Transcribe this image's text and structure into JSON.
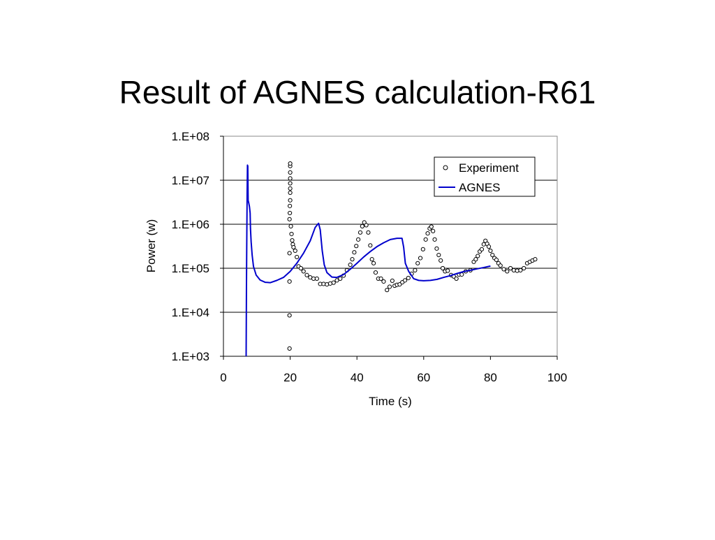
{
  "slide": {
    "title": "Result of AGNES calculation-R61"
  },
  "chart_data": {
    "type": "scatter",
    "title": "",
    "xlabel": "Time (s)",
    "ylabel": "Power (w)",
    "xlim": [
      0,
      100
    ],
    "ylim": [
      1000,
      100000000
    ],
    "yscale": "log",
    "x_ticks": [
      0,
      20,
      40,
      60,
      80,
      100
    ],
    "x_tick_labels": [
      "0",
      "20",
      "40",
      "60",
      "80",
      "100"
    ],
    "y_ticks": [
      1000,
      10000,
      100000,
      1000000,
      10000000,
      100000000
    ],
    "y_tick_labels": [
      "1.E+03",
      "1.E+04",
      "1.E+05",
      "1.E+06",
      "1.E+07",
      "1.E+08"
    ],
    "grid": "horizontal major gridlines",
    "legend_position": "top-right",
    "series": [
      {
        "name": "Experiment",
        "kind": "markers",
        "marker": "open-circle",
        "color": "#000000",
        "points": [
          [
            19.8,
            1500
          ],
          [
            19.8,
            8500
          ],
          [
            19.8,
            50000
          ],
          [
            19.8,
            220000
          ],
          [
            19.8,
            1300000
          ],
          [
            19.9,
            1800000
          ],
          [
            19.9,
            2600000
          ],
          [
            20.0,
            3500000
          ],
          [
            20.0,
            5200000
          ],
          [
            20.0,
            6500000
          ],
          [
            20.0,
            8500000
          ],
          [
            20.0,
            11000000
          ],
          [
            20.0,
            15000000
          ],
          [
            20.0,
            21000000
          ],
          [
            20.0,
            24000000
          ],
          [
            20.2,
            900000
          ],
          [
            20.4,
            600000
          ],
          [
            20.6,
            430000
          ],
          [
            20.8,
            350000
          ],
          [
            21.0,
            300000
          ],
          [
            21.5,
            250000
          ],
          [
            22.0,
            180000
          ],
          [
            22.5,
            110000
          ],
          [
            23.2,
            100000
          ],
          [
            24.0,
            85000
          ],
          [
            25.0,
            70000
          ],
          [
            26.0,
            62000
          ],
          [
            27.0,
            58000
          ],
          [
            28.0,
            58000
          ],
          [
            29.0,
            44000
          ],
          [
            30.0,
            44000
          ],
          [
            31.0,
            43000
          ],
          [
            32.0,
            45000
          ],
          [
            33.0,
            47000
          ],
          [
            34.0,
            53000
          ],
          [
            35.0,
            58000
          ],
          [
            36.0,
            68000
          ],
          [
            37.0,
            90000
          ],
          [
            38.0,
            120000
          ],
          [
            38.6,
            160000
          ],
          [
            39.2,
            230000
          ],
          [
            39.8,
            320000
          ],
          [
            40.4,
            450000
          ],
          [
            41.0,
            650000
          ],
          [
            41.6,
            900000
          ],
          [
            42.2,
            1100000
          ],
          [
            42.8,
            950000
          ],
          [
            43.4,
            650000
          ],
          [
            44.0,
            330000
          ],
          [
            44.5,
            160000
          ],
          [
            45.0,
            130000
          ],
          [
            45.6,
            80000
          ],
          [
            46.4,
            58000
          ],
          [
            47.2,
            58000
          ],
          [
            48.0,
            50000
          ],
          [
            49.0,
            32000
          ],
          [
            49.8,
            38000
          ],
          [
            50.6,
            52000
          ],
          [
            51.3,
            40000
          ],
          [
            52.0,
            42000
          ],
          [
            52.8,
            43000
          ],
          [
            53.6,
            48000
          ],
          [
            54.4,
            53000
          ],
          [
            55.4,
            60000
          ],
          [
            56.4,
            75000
          ],
          [
            57.4,
            90000
          ],
          [
            58.2,
            130000
          ],
          [
            59.0,
            170000
          ],
          [
            59.8,
            270000
          ],
          [
            60.6,
            450000
          ],
          [
            61.2,
            620000
          ],
          [
            61.8,
            800000
          ],
          [
            62.3,
            880000
          ],
          [
            62.8,
            700000
          ],
          [
            63.3,
            450000
          ],
          [
            63.9,
            280000
          ],
          [
            64.5,
            200000
          ],
          [
            65.1,
            150000
          ],
          [
            65.7,
            100000
          ],
          [
            66.4,
            85000
          ],
          [
            67.2,
            88000
          ],
          [
            68.2,
            70000
          ],
          [
            69.0,
            65000
          ],
          [
            69.8,
            58000
          ],
          [
            70.6,
            72000
          ],
          [
            71.4,
            72000
          ],
          [
            72.6,
            85000
          ],
          [
            74.0,
            90000
          ],
          [
            75.0,
            140000
          ],
          [
            75.6,
            160000
          ],
          [
            76.2,
            190000
          ],
          [
            76.8,
            240000
          ],
          [
            77.4,
            270000
          ],
          [
            78.0,
            350000
          ],
          [
            78.5,
            420000
          ],
          [
            79.0,
            360000
          ],
          [
            79.5,
            310000
          ],
          [
            80.0,
            250000
          ],
          [
            80.6,
            200000
          ],
          [
            81.2,
            170000
          ],
          [
            81.8,
            155000
          ],
          [
            82.4,
            130000
          ],
          [
            83.0,
            115000
          ],
          [
            84.0,
            95000
          ],
          [
            85.0,
            85000
          ],
          [
            86.0,
            100000
          ],
          [
            87.0,
            90000
          ],
          [
            88.0,
            88000
          ],
          [
            89.0,
            90000
          ],
          [
            90.0,
            100000
          ],
          [
            91.0,
            130000
          ],
          [
            91.8,
            140000
          ],
          [
            92.6,
            150000
          ],
          [
            93.4,
            160000
          ]
        ]
      },
      {
        "name": "AGNES",
        "kind": "line",
        "color": "#0000cc",
        "points": [
          [
            6.8,
            1000
          ],
          [
            6.9,
            40000
          ],
          [
            7.0,
            500000
          ],
          [
            7.1,
            5000000
          ],
          [
            7.2,
            22000000
          ],
          [
            7.3,
            21000000
          ],
          [
            7.4,
            3500000
          ],
          [
            7.6,
            3000000
          ],
          [
            7.8,
            2500000
          ],
          [
            8.0,
            1800000
          ],
          [
            8.1,
            800000
          ],
          [
            8.3,
            400000
          ],
          [
            8.6,
            200000
          ],
          [
            9.0,
            110000
          ],
          [
            9.8,
            70000
          ],
          [
            11.0,
            54000
          ],
          [
            12.5,
            48000
          ],
          [
            14.0,
            47000
          ],
          [
            16.0,
            53000
          ],
          [
            18.0,
            62000
          ],
          [
            20.0,
            85000
          ],
          [
            22.0,
            130000
          ],
          [
            24.0,
            220000
          ],
          [
            26.0,
            420000
          ],
          [
            27.5,
            850000
          ],
          [
            28.5,
            1050000
          ],
          [
            29.0,
            750000
          ],
          [
            29.6,
            250000
          ],
          [
            30.2,
            120000
          ],
          [
            31.0,
            80000
          ],
          [
            32.5,
            63000
          ],
          [
            34.0,
            62000
          ],
          [
            36.0,
            72000
          ],
          [
            38.0,
            95000
          ],
          [
            40.0,
            130000
          ],
          [
            42.0,
            180000
          ],
          [
            44.0,
            240000
          ],
          [
            46.0,
            310000
          ],
          [
            48.0,
            380000
          ],
          [
            50.0,
            450000
          ],
          [
            52.0,
            480000
          ],
          [
            53.5,
            480000
          ],
          [
            54.0,
            300000
          ],
          [
            54.5,
            130000
          ],
          [
            55.5,
            85000
          ],
          [
            57.0,
            58000
          ],
          [
            58.5,
            53000
          ],
          [
            60.0,
            52000
          ],
          [
            62.0,
            53000
          ],
          [
            64.0,
            56000
          ],
          [
            66.0,
            62000
          ],
          [
            68.0,
            68000
          ],
          [
            70.0,
            76000
          ],
          [
            72.0,
            84000
          ],
          [
            74.0,
            90000
          ],
          [
            76.0,
            97000
          ],
          [
            78.0,
            104000
          ],
          [
            80.0,
            112000
          ]
        ]
      }
    ]
  },
  "style": {
    "plot_background": "#ffffff",
    "gridline_color": "#000000",
    "plot_border_color": "#888888",
    "agnes_color": "#0000cc"
  }
}
